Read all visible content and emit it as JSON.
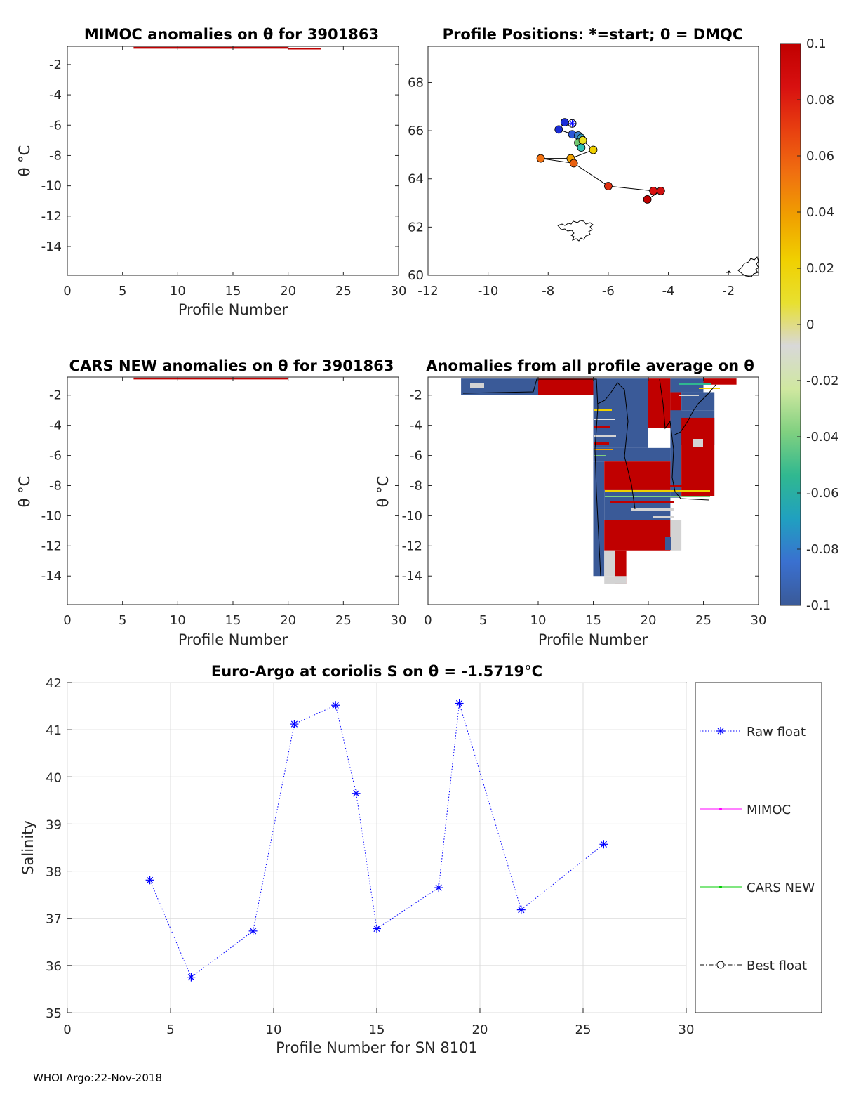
{
  "footer": "WHOI Argo:22-Nov-2018",
  "colors": {
    "raw": "#0000ff",
    "mimoc": "#ff00ff",
    "cars": "#00cc00",
    "best": "#000000"
  },
  "chart_data": [
    {
      "id": "mimoc",
      "type": "heatmap",
      "title": "MIMOC anomalies on θ  for 3901863",
      "xlabel": "Profile Number",
      "ylabel": "θ °C",
      "xlim": [
        0,
        30
      ],
      "ylim": [
        -15.9,
        -0.8
      ],
      "xticks": [
        0,
        5,
        10,
        15,
        20,
        25,
        30
      ],
      "yticks": [
        -2,
        -4,
        -6,
        -8,
        -10,
        -12,
        -14
      ],
      "segments": [
        {
          "x0": 6,
          "x1": 20,
          "theta": -0.9,
          "color": "#c00000"
        },
        {
          "x0": 20,
          "x1": 23,
          "theta": -0.95,
          "color": "#c00000"
        }
      ]
    },
    {
      "id": "positions",
      "type": "scatter",
      "title": "Profile Positions: *=start; 0 = DMQC",
      "xlim": [
        -12,
        -1
      ],
      "ylim": [
        60,
        69.5
      ],
      "xticks": [
        -12,
        -10,
        -8,
        -6,
        -4,
        -2
      ],
      "yticks": [
        60,
        62,
        64,
        66,
        68
      ],
      "points": [
        {
          "lon": -7.2,
          "lat": 66.3,
          "color": "#ffffff",
          "start": true
        },
        {
          "lon": -7.45,
          "lat": 66.35,
          "color": "#1a2cd6"
        },
        {
          "lon": -7.65,
          "lat": 66.05,
          "color": "#1a2cd6"
        },
        {
          "lon": -7.2,
          "lat": 65.85,
          "color": "#2a55d8"
        },
        {
          "lon": -7.0,
          "lat": 65.8,
          "color": "#3a80c8"
        },
        {
          "lon": -6.9,
          "lat": 65.7,
          "color": "#3aa0c0"
        },
        {
          "lon": -7.0,
          "lat": 65.5,
          "color": "#70c870"
        },
        {
          "lon": -6.9,
          "lat": 65.3,
          "color": "#30c0b0"
        },
        {
          "lon": -6.85,
          "lat": 65.6,
          "color": "#e8e020"
        },
        {
          "lon": -6.5,
          "lat": 65.2,
          "color": "#f0d000"
        },
        {
          "lon": -7.25,
          "lat": 64.85,
          "color": "#f0a000"
        },
        {
          "lon": -8.25,
          "lat": 64.85,
          "color": "#f07010"
        },
        {
          "lon": -7.15,
          "lat": 64.65,
          "color": "#e86010"
        },
        {
          "lon": -6.0,
          "lat": 63.7,
          "color": "#e03010"
        },
        {
          "lon": -4.5,
          "lat": 63.5,
          "color": "#d81010"
        },
        {
          "lon": -4.25,
          "lat": 63.5,
          "color": "#d01010"
        },
        {
          "lon": -4.7,
          "lat": 63.15,
          "color": "#c00000"
        }
      ]
    },
    {
      "id": "cars",
      "type": "heatmap",
      "title": "CARS NEW anomalies on θ for 3901863",
      "xlabel": "Profile Number",
      "ylabel": "θ °C",
      "xlim": [
        0,
        30
      ],
      "ylim": [
        -15.9,
        -0.8
      ],
      "xticks": [
        0,
        5,
        10,
        15,
        20,
        25,
        30
      ],
      "yticks": [
        -2,
        -4,
        -6,
        -8,
        -10,
        -12,
        -14
      ],
      "segments": [
        {
          "x0": 6,
          "x1": 20,
          "theta": -0.9,
          "color": "#c00000"
        }
      ]
    },
    {
      "id": "anom",
      "type": "heatmap",
      "title": "Anomalies from all profile average on θ",
      "xlabel": "Profile Number",
      "ylabel": "θ °C",
      "xlim": [
        0,
        30
      ],
      "ylim": [
        -15.9,
        -0.8
      ],
      "xticks": [
        0,
        5,
        10,
        15,
        20,
        25,
        30
      ],
      "yticks": [
        -2,
        -4,
        -6,
        -8,
        -10,
        -12,
        -14
      ],
      "cells": [
        {
          "x0": 3,
          "x1": 10,
          "t0": -0.9,
          "t1": -2.0,
          "c": "#3a5a98"
        },
        {
          "x0": 10,
          "x1": 15,
          "t0": -0.9,
          "t1": -2.0,
          "c": "#c00000"
        },
        {
          "x0": 15,
          "x1": 20,
          "t0": -0.9,
          "t1": -2.0,
          "c": "#3a5a98"
        },
        {
          "x0": 20,
          "x1": 22,
          "t0": -0.9,
          "t1": -4.2,
          "c": "#c00000"
        },
        {
          "x0": 22,
          "x1": 25,
          "t0": -0.9,
          "t1": -1.8,
          "c": "#3a5a98"
        },
        {
          "x0": 25,
          "x1": 28,
          "t0": -0.9,
          "t1": -1.3,
          "c": "#c00000"
        },
        {
          "x0": 15,
          "x1": 20,
          "t0": -2.0,
          "t1": -5.5,
          "c": "#3a5a98"
        },
        {
          "x0": 22,
          "x1": 23,
          "t0": -1.8,
          "t1": -3.5,
          "c": "#c00000"
        },
        {
          "x0": 23,
          "x1": 26,
          "t0": -1.8,
          "t1": -3.0,
          "c": "#3a5a98"
        },
        {
          "x0": 22,
          "x1": 26,
          "t0": -3.0,
          "t1": -5.3,
          "c": "#3a5a98"
        },
        {
          "x0": 15,
          "x1": 22,
          "t0": -5.5,
          "t1": -6.4,
          "c": "#3a5a98"
        },
        {
          "x0": 22,
          "x1": 23,
          "t0": -5.3,
          "t1": -8.8,
          "c": "#3a5a98"
        },
        {
          "x0": 23,
          "x1": 26,
          "t0": -3.5,
          "t1": -5.3,
          "c": "#c00000"
        },
        {
          "x0": 23,
          "x1": 26,
          "t0": -5.3,
          "t1": -8.7,
          "c": "#c00000"
        },
        {
          "x0": 15,
          "x1": 16,
          "t0": -6.4,
          "t1": -14.0,
          "c": "#3a5a98"
        },
        {
          "x0": 16,
          "x1": 22,
          "t0": -6.4,
          "t1": -8.3,
          "c": "#c00000"
        },
        {
          "x0": 16,
          "x1": 22,
          "t0": -8.3,
          "t1": -10.3,
          "c": "#3a5a98"
        },
        {
          "x0": 16,
          "x1": 22,
          "t0": -10.3,
          "t1": -12.3,
          "c": "#c00000"
        },
        {
          "x0": 22,
          "x1": 23,
          "t0": -10.3,
          "t1": -12.3,
          "c": "#d3d3d3"
        },
        {
          "x0": 16,
          "x1": 17,
          "t0": -12.3,
          "t1": -14.0,
          "c": "#d3d3d3"
        },
        {
          "x0": 17,
          "x1": 18,
          "t0": -12.3,
          "t1": -14.5,
          "c": "#c00000"
        },
        {
          "x0": 16,
          "x1": 18,
          "t0": -14.0,
          "t1": -14.5,
          "c": "#d3d3d3"
        }
      ]
    },
    {
      "id": "salinity",
      "type": "line",
      "title": "Euro-Argo at coriolis S on θ = -1.5719°C",
      "xlabel": "Profile Number for SN 8101",
      "ylabel": "Salinity",
      "xlim": [
        0,
        30
      ],
      "ylim": [
        35,
        42
      ],
      "xticks": [
        0,
        5,
        10,
        15,
        20,
        25,
        30
      ],
      "yticks": [
        35,
        36,
        37,
        38,
        39,
        40,
        41,
        42
      ],
      "series": [
        {
          "name": "Raw float",
          "x": [
            4,
            6,
            9,
            11,
            13,
            14,
            15,
            18,
            19,
            22,
            26
          ],
          "y": [
            37.81,
            35.75,
            36.73,
            41.12,
            41.52,
            39.65,
            36.78,
            37.65,
            41.56,
            37.18,
            38.57
          ]
        },
        {
          "name": "MIMOC",
          "x": [],
          "y": []
        },
        {
          "name": "CARS NEW",
          "x": [],
          "y": []
        },
        {
          "name": "Best float",
          "x": [],
          "y": []
        }
      ]
    }
  ],
  "colorbar": {
    "ticks": [
      "0.1",
      "0.08",
      "0.06",
      "0.04",
      "0.02",
      "0",
      "-0.02",
      "-0.04",
      "-0.06",
      "-0.08",
      "-0.1"
    ],
    "stops": [
      "#c00000",
      "#d81010",
      "#e84010",
      "#f07010",
      "#f0a000",
      "#f0d000",
      "#e8e030",
      "#d8d8d8",
      "#d0e8a0",
      "#80d080",
      "#30b890",
      "#20a0c0",
      "#3a70d0",
      "#3a5a98"
    ]
  }
}
